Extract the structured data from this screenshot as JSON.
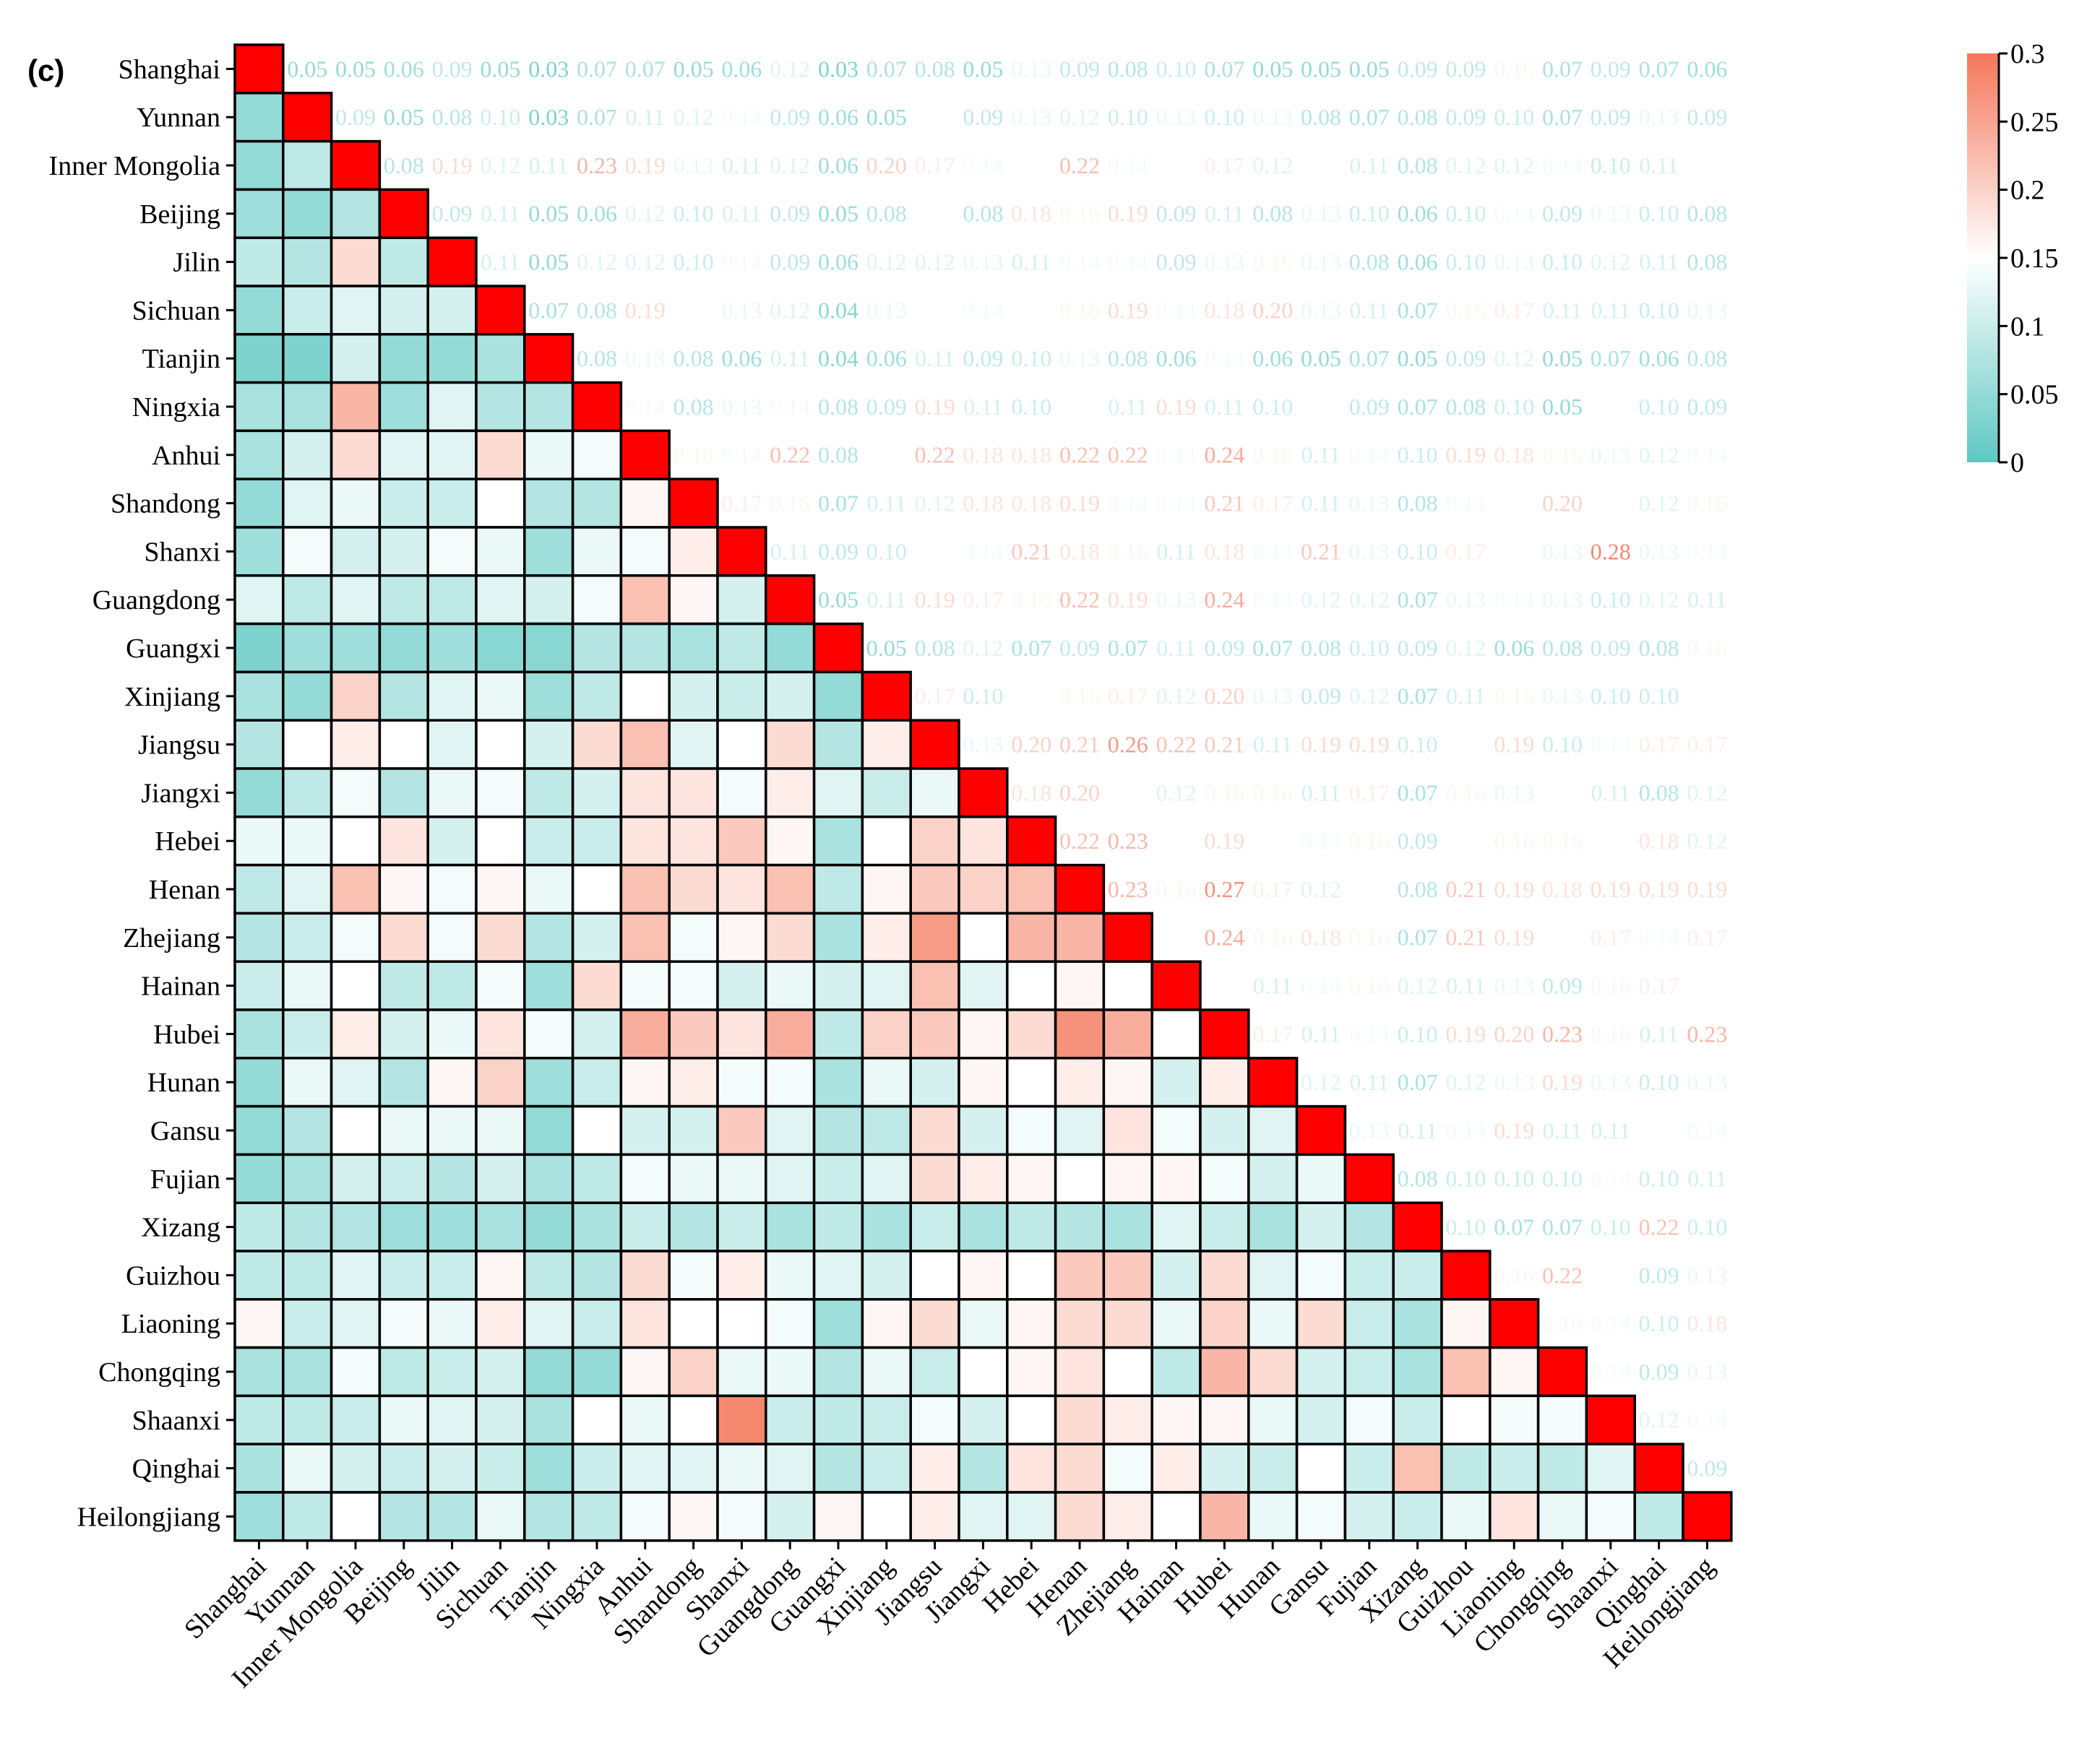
{
  "chart_data": {
    "type": "heatmap",
    "panel_label": "(c)",
    "title": "",
    "xlabel": "",
    "ylabel": "",
    "regions": [
      "Shanghai",
      "Yunnan",
      "Inner Mongolia",
      "Beijing",
      "Jilin",
      "Sichuan",
      "Tianjin",
      "Ningxia",
      "Anhui",
      "Shandong",
      "Shanxi",
      "Guangdong",
      "Guangxi",
      "Xinjiang",
      "Jiangsu",
      "Jiangxi",
      "Hebei",
      "Henan",
      "Zhejiang",
      "Hainan",
      "Hubei",
      "Hunan",
      "Gansu",
      "Fujian",
      "Xizang",
      "Guizhou",
      "Liaoning",
      "Chongqing",
      "Shaanxi",
      "Qinghai",
      "Heilongjiang"
    ],
    "value_labels": [
      [
        "",
        "0.05",
        "0.05",
        "0.06",
        "0.09",
        "0.05",
        "0.03",
        "0.07",
        "0.07",
        "0.05",
        "0.06",
        "0.12",
        "0.03",
        "0.07",
        "0.08",
        "0.05",
        "0.13",
        "0.09",
        "0.08",
        "0.10",
        "0.07",
        "0.05",
        "0.05",
        "0.05",
        "0.09",
        "0.09",
        "0.16",
        "0.07",
        "0.09",
        "0.07",
        "0.06"
      ],
      [
        "0.05",
        "",
        "0.09",
        "0.05",
        "0.08",
        "0.10",
        "0.03",
        "0.07",
        "0.11",
        "0.12",
        "0.14",
        "0.09",
        "0.06",
        "0.05",
        "0.15",
        "0.09",
        "0.13",
        "0.12",
        "0.10",
        "0.13",
        "0.10",
        "0.13",
        "0.08",
        "0.07",
        "0.08",
        "0.09",
        "0.10",
        "0.07",
        "0.09",
        "0.13",
        "0.09"
      ],
      [
        "0.05",
        "0.09",
        "",
        "0.08",
        "0.19",
        "0.12",
        "0.11",
        "0.23",
        "0.19",
        "0.13",
        "0.11",
        "0.12",
        "0.06",
        "0.20",
        "0.17",
        "0.14",
        "0.15",
        "0.22",
        "0.14",
        "0.15",
        "0.17",
        "0.12",
        "0.15",
        "0.11",
        "0.08",
        "0.12",
        "0.12",
        "0.14",
        "0.10",
        "0.11",
        "0.15"
      ],
      [
        "0.06",
        "0.05",
        "0.08",
        "",
        "0.09",
        "0.11",
        "0.05",
        "0.06",
        "0.12",
        "0.10",
        "0.11",
        "0.09",
        "0.05",
        "0.08",
        "0.15",
        "0.08",
        "0.18",
        "0.16",
        "0.19",
        "0.09",
        "0.11",
        "0.08",
        "0.13",
        "0.10",
        "0.06",
        "0.10",
        "0.14",
        "0.09",
        "0.13",
        "0.10",
        "0.08"
      ],
      [
        "0.09",
        "0.08",
        "0.19",
        "0.09",
        "",
        "0.11",
        "0.05",
        "0.12",
        "0.12",
        "0.10",
        "0.14",
        "0.09",
        "0.06",
        "0.12",
        "0.12",
        "0.13",
        "0.11",
        "0.14",
        "0.14",
        "0.09",
        "0.13",
        "0.16",
        "0.13",
        "0.08",
        "0.06",
        "0.10",
        "0.13",
        "0.10",
        "0.12",
        "0.11",
        "0.08"
      ],
      [
        "0.05",
        "0.10",
        "0.12",
        "0.11",
        "0.11",
        "",
        "0.07",
        "0.08",
        "0.19",
        "0.15",
        "0.13",
        "0.12",
        "0.04",
        "0.13",
        "0.15",
        "0.14",
        "0.15",
        "0.16",
        "0.19",
        "0.14",
        "0.18",
        "0.20",
        "0.13",
        "0.11",
        "0.07",
        "0.16",
        "0.17",
        "0.11",
        "0.11",
        "0.10",
        "0.13"
      ],
      [
        "0.03",
        "0.03",
        "0.11",
        "0.05",
        "0.05",
        "0.07",
        "",
        "0.08",
        "0.13",
        "0.08",
        "0.06",
        "0.11",
        "0.04",
        "0.06",
        "0.11",
        "0.09",
        "0.10",
        "0.13",
        "0.08",
        "0.06",
        "0.14",
        "0.06",
        "0.05",
        "0.07",
        "0.05",
        "0.09",
        "0.12",
        "0.05",
        "0.07",
        "0.06",
        "0.08"
      ],
      [
        "0.07",
        "0.07",
        "0.23",
        "0.06",
        "0.12",
        "0.08",
        "0.08",
        "",
        "0.14",
        "0.08",
        "0.13",
        "0.14",
        "0.08",
        "0.09",
        "0.19",
        "0.11",
        "0.10",
        "0.15",
        "0.11",
        "0.19",
        "0.11",
        "0.10",
        "0.15",
        "0.09",
        "0.07",
        "0.08",
        "0.10",
        "0.05",
        "0.15",
        "0.10",
        "0.09"
      ],
      [
        "0.07",
        "0.11",
        "0.19",
        "0.12",
        "0.12",
        "0.19",
        "0.13",
        "0.14",
        "",
        "0.16",
        "0.14",
        "0.22",
        "0.08",
        "0.15",
        "0.22",
        "0.18",
        "0.18",
        "0.22",
        "0.22",
        "0.14",
        "0.24",
        "0.16",
        "0.11",
        "0.14",
        "0.10",
        "0.19",
        "0.18",
        "0.16",
        "0.13",
        "0.12",
        "0.14"
      ],
      [
        "0.05",
        "0.12",
        "0.13",
        "0.10",
        "0.10",
        "0.15",
        "0.08",
        "0.08",
        "0.16",
        "",
        "0.17",
        "0.16",
        "0.07",
        "0.11",
        "0.12",
        "0.18",
        "0.18",
        "0.19",
        "0.14",
        "0.14",
        "0.21",
        "0.17",
        "0.11",
        "0.13",
        "0.08",
        "0.14",
        "0.15",
        "0.20",
        "0.15",
        "0.12",
        "0.16"
      ],
      [
        "0.06",
        "0.14",
        "0.11",
        "0.11",
        "0.14",
        "0.13",
        "0.06",
        "0.13",
        "0.14",
        "0.17",
        "",
        "0.11",
        "0.09",
        "0.10",
        "0.15",
        "0.14",
        "0.21",
        "0.18",
        "0.16",
        "0.11",
        "0.18",
        "0.14",
        "0.21",
        "0.13",
        "0.10",
        "0.17",
        "0.15",
        "0.13",
        "0.28",
        "0.13",
        "0.14"
      ],
      [
        "0.12",
        "0.09",
        "0.12",
        "0.09",
        "0.09",
        "0.12",
        "0.11",
        "0.14",
        "0.22",
        "0.16",
        "0.11",
        "",
        "0.05",
        "0.11",
        "0.19",
        "0.17",
        "0.16",
        "0.22",
        "0.19",
        "0.13",
        "0.24",
        "0.14",
        "0.12",
        "0.12",
        "0.07",
        "0.13",
        "0.14",
        "0.13",
        "0.10",
        "0.12",
        "0.11"
      ],
      [
        "0.03",
        "0.06",
        "0.06",
        "0.05",
        "0.06",
        "0.04",
        "0.04",
        "0.08",
        "0.08",
        "0.07",
        "0.09",
        "0.05",
        "",
        "0.05",
        "0.08",
        "0.12",
        "0.07",
        "0.09",
        "0.07",
        "0.11",
        "0.09",
        "0.07",
        "0.08",
        "0.10",
        "0.09",
        "0.12",
        "0.06",
        "0.08",
        "0.09",
        "0.08",
        "0.16"
      ],
      [
        "0.07",
        "0.05",
        "0.20",
        "0.08",
        "0.12",
        "0.13",
        "0.06",
        "0.09",
        "0.15",
        "0.11",
        "0.10",
        "0.11",
        "0.05",
        "",
        "0.17",
        "0.10",
        "0.15",
        "0.16",
        "0.17",
        "0.12",
        "0.20",
        "0.13",
        "0.09",
        "0.12",
        "0.07",
        "0.11",
        "0.16",
        "0.13",
        "0.10",
        "0.10",
        "0.15"
      ],
      [
        "0.08",
        "0.15",
        "0.17",
        "0.15",
        "0.12",
        "0.15",
        "0.11",
        "0.19",
        "0.22",
        "0.12",
        "0.15",
        "0.19",
        "0.08",
        "0.17",
        "",
        "0.13",
        "0.20",
        "0.21",
        "0.26",
        "0.22",
        "0.21",
        "0.11",
        "0.19",
        "0.19",
        "0.10",
        "0.15",
        "0.19",
        "0.10",
        "0.14",
        "0.17",
        "0.17"
      ],
      [
        "0.05",
        "0.09",
        "0.14",
        "0.08",
        "0.13",
        "0.14",
        "0.09",
        "0.11",
        "0.18",
        "0.18",
        "0.14",
        "0.17",
        "0.12",
        "0.10",
        "0.13",
        "",
        "0.18",
        "0.20",
        "0.15",
        "0.12",
        "0.16",
        "0.16",
        "0.11",
        "0.17",
        "0.07",
        "0.16",
        "0.13",
        "0.15",
        "0.11",
        "0.08",
        "0.12"
      ],
      [
        "0.13",
        "0.13",
        "0.15",
        "0.18",
        "0.11",
        "0.15",
        "0.10",
        "0.10",
        "0.18",
        "0.18",
        "0.21",
        "0.16",
        "0.07",
        "0.15",
        "0.20",
        "0.18",
        "",
        "0.22",
        "0.23",
        "0.15",
        "0.19",
        "0.15",
        "0.14",
        "0.16",
        "0.09",
        "0.15",
        "0.16",
        "0.16",
        "0.15",
        "0.18",
        "0.12"
      ],
      [
        "0.09",
        "0.12",
        "0.22",
        "0.16",
        "0.14",
        "0.16",
        "0.13",
        "0.15",
        "0.22",
        "0.19",
        "0.18",
        "0.22",
        "0.09",
        "0.16",
        "0.21",
        "0.20",
        "0.22",
        "",
        "0.23",
        "0.16",
        "0.27",
        "0.17",
        "0.12",
        "0.15",
        "0.08",
        "0.21",
        "0.19",
        "0.18",
        "0.19",
        "0.19",
        "0.19"
      ],
      [
        "0.08",
        "0.10",
        "0.14",
        "0.19",
        "0.14",
        "0.19",
        "0.08",
        "0.11",
        "0.22",
        "0.14",
        "0.16",
        "0.19",
        "0.07",
        "0.17",
        "0.26",
        "0.15",
        "0.23",
        "0.23",
        "",
        "0.15",
        "0.24",
        "0.16",
        "0.18",
        "0.16",
        "0.07",
        "0.21",
        "0.19",
        "0.15",
        "0.17",
        "0.14",
        "0.17"
      ],
      [
        "0.10",
        "0.13",
        "0.15",
        "0.09",
        "0.09",
        "0.14",
        "0.06",
        "0.19",
        "0.14",
        "0.14",
        "0.11",
        "0.13",
        "0.11",
        "0.12",
        "0.22",
        "0.12",
        "0.15",
        "0.16",
        "0.15",
        "",
        "0.15",
        "0.11",
        "0.14",
        "0.16",
        "0.12",
        "0.11",
        "0.13",
        "0.09",
        "0.16",
        "0.17",
        "0.15"
      ],
      [
        "0.07",
        "0.10",
        "0.17",
        "0.11",
        "0.13",
        "0.18",
        "0.14",
        "0.11",
        "0.24",
        "0.21",
        "0.18",
        "0.24",
        "0.09",
        "0.20",
        "0.21",
        "0.16",
        "0.19",
        "0.27",
        "0.24",
        "0.15",
        "",
        "0.17",
        "0.11",
        "0.14",
        "0.10",
        "0.19",
        "0.20",
        "0.23",
        "0.16",
        "0.11",
        "0.23"
      ],
      [
        "0.05",
        "0.13",
        "0.12",
        "0.08",
        "0.16",
        "0.20",
        "0.06",
        "0.10",
        "0.16",
        "0.17",
        "0.14",
        "0.14",
        "0.07",
        "0.13",
        "0.11",
        "0.16",
        "0.15",
        "0.17",
        "0.16",
        "0.11",
        "0.17",
        "",
        "0.12",
        "0.11",
        "0.07",
        "0.12",
        "0.13",
        "0.19",
        "0.13",
        "0.10",
        "0.13"
      ],
      [
        "0.05",
        "0.08",
        "0.15",
        "0.13",
        "0.13",
        "0.13",
        "0.05",
        "0.15",
        "0.11",
        "0.11",
        "0.21",
        "0.12",
        "0.08",
        "0.09",
        "0.19",
        "0.11",
        "0.14",
        "0.12",
        "0.18",
        "0.14",
        "0.11",
        "0.12",
        "",
        "0.13",
        "0.11",
        "0.14",
        "0.19",
        "0.11",
        "0.11",
        "0.15",
        "0.14"
      ],
      [
        "0.05",
        "0.07",
        "0.11",
        "0.10",
        "0.08",
        "0.11",
        "0.07",
        "0.09",
        "0.14",
        "0.13",
        "0.13",
        "0.12",
        "0.10",
        "0.12",
        "0.19",
        "0.17",
        "0.16",
        "0.15",
        "0.16",
        "0.16",
        "0.14",
        "0.11",
        "0.13",
        "",
        "0.08",
        "0.10",
        "0.10",
        "0.10",
        "0.14",
        "0.10",
        "0.11"
      ],
      [
        "0.09",
        "0.08",
        "0.08",
        "0.06",
        "0.06",
        "0.07",
        "0.05",
        "0.07",
        "0.10",
        "0.08",
        "0.10",
        "0.07",
        "0.09",
        "0.07",
        "0.10",
        "0.07",
        "0.09",
        "0.08",
        "0.07",
        "0.12",
        "0.10",
        "0.07",
        "0.11",
        "0.08",
        "",
        "0.10",
        "0.07",
        "0.07",
        "0.10",
        "0.22",
        "0.10"
      ],
      [
        "0.09",
        "0.09",
        "0.12",
        "0.10",
        "0.10",
        "0.16",
        "0.09",
        "0.08",
        "0.19",
        "0.14",
        "0.17",
        "0.13",
        "0.12",
        "0.11",
        "0.15",
        "0.16",
        "0.15",
        "0.21",
        "0.21",
        "0.11",
        "0.19",
        "0.12",
        "0.14",
        "0.10",
        "0.10",
        "",
        "0.16",
        "0.22",
        "0.15",
        "0.09",
        "0.13"
      ],
      [
        "0.16",
        "0.10",
        "0.12",
        "0.14",
        "0.13",
        "0.17",
        "0.12",
        "0.10",
        "0.18",
        "0.15",
        "0.15",
        "0.14",
        "0.06",
        "0.16",
        "0.19",
        "0.13",
        "0.16",
        "0.19",
        "0.19",
        "0.13",
        "0.20",
        "0.13",
        "0.19",
        "0.10",
        "0.07",
        "0.16",
        "",
        "0.16",
        "0.14",
        "0.10",
        "0.18"
      ],
      [
        "0.07",
        "0.07",
        "0.14",
        "0.09",
        "0.10",
        "0.11",
        "0.05",
        "0.05",
        "0.16",
        "0.20",
        "0.13",
        "0.13",
        "0.08",
        "0.13",
        "0.10",
        "0.15",
        "0.16",
        "0.18",
        "0.15",
        "0.09",
        "0.23",
        "0.19",
        "0.11",
        "0.10",
        "0.07",
        "0.22",
        "0.16",
        "",
        "0.14",
        "0.09",
        "0.13"
      ],
      [
        "0.09",
        "0.09",
        "0.10",
        "0.13",
        "0.12",
        "0.11",
        "0.07",
        "0.15",
        "0.13",
        "0.15",
        "0.28",
        "0.10",
        "0.09",
        "0.10",
        "0.14",
        "0.11",
        "0.15",
        "0.19",
        "0.17",
        "0.16",
        "0.16",
        "0.13",
        "0.11",
        "0.14",
        "0.10",
        "0.15",
        "0.14",
        "0.14",
        "",
        "0.12",
        "0.14"
      ],
      [
        "0.07",
        "0.13",
        "0.11",
        "0.10",
        "0.11",
        "0.10",
        "0.06",
        "0.10",
        "0.12",
        "0.12",
        "0.13",
        "0.12",
        "0.08",
        "0.10",
        "0.17",
        "0.08",
        "0.18",
        "0.19",
        "0.14",
        "0.17",
        "0.11",
        "0.10",
        "0.15",
        "0.10",
        "0.22",
        "0.09",
        "0.10",
        "0.09",
        "0.12",
        "",
        "0.09"
      ],
      [
        "0.06",
        "0.09",
        "0.15",
        "0.08",
        "0.08",
        "0.13",
        "0.08",
        "0.09",
        "0.14",
        "0.16",
        "0.14",
        "0.11",
        "0.16",
        "0.15",
        "0.17",
        "0.12",
        "0.12",
        "0.19",
        "0.17",
        "0.15",
        "0.23",
        "0.13",
        "0.14",
        "0.11",
        "0.10",
        "0.13",
        "0.18",
        "0.13",
        "0.14",
        "0.09",
        ""
      ]
    ],
    "diagonal_color": "#ff0000",
    "colorbar": {
      "min": 0,
      "max": 0.3,
      "ticks": [
        "0",
        "0.05",
        "0.1",
        "0.15",
        "0.2",
        "0.25",
        "0.3"
      ],
      "colors": {
        "low": "#5ec8c3",
        "mid": "#ffffff",
        "high": "#f4775a"
      }
    }
  }
}
